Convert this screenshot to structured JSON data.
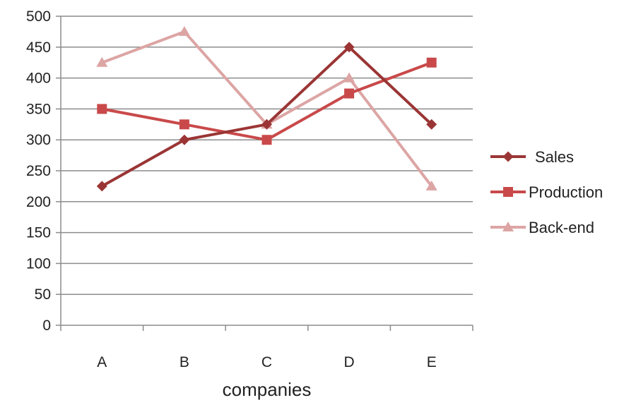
{
  "chart_data": {
    "type": "line",
    "categories": [
      "A",
      "B",
      "C",
      "D",
      "E"
    ],
    "series": [
      {
        "name": "Sales",
        "values": [
          225,
          300,
          325,
          450,
          325
        ],
        "color": "#9b3535",
        "marker": "diamond"
      },
      {
        "name": "Production",
        "values": [
          350,
          325,
          300,
          375,
          425
        ],
        "color": "#c9494a",
        "marker": "square"
      },
      {
        "name": "Back-end",
        "values": [
          425,
          475,
          325,
          400,
          225
        ],
        "color": "#dca5a4",
        "marker": "triangle"
      }
    ],
    "xlabel": "companies",
    "ylabel": "",
    "ylim": [
      0,
      500
    ],
    "yticks": [
      0,
      50,
      100,
      150,
      200,
      250,
      300,
      350,
      400,
      450,
      500
    ],
    "grid": true,
    "legend_position": "right",
    "colors": {
      "grid": "#8c8c8c",
      "axis": "#8c8c8c"
    }
  }
}
